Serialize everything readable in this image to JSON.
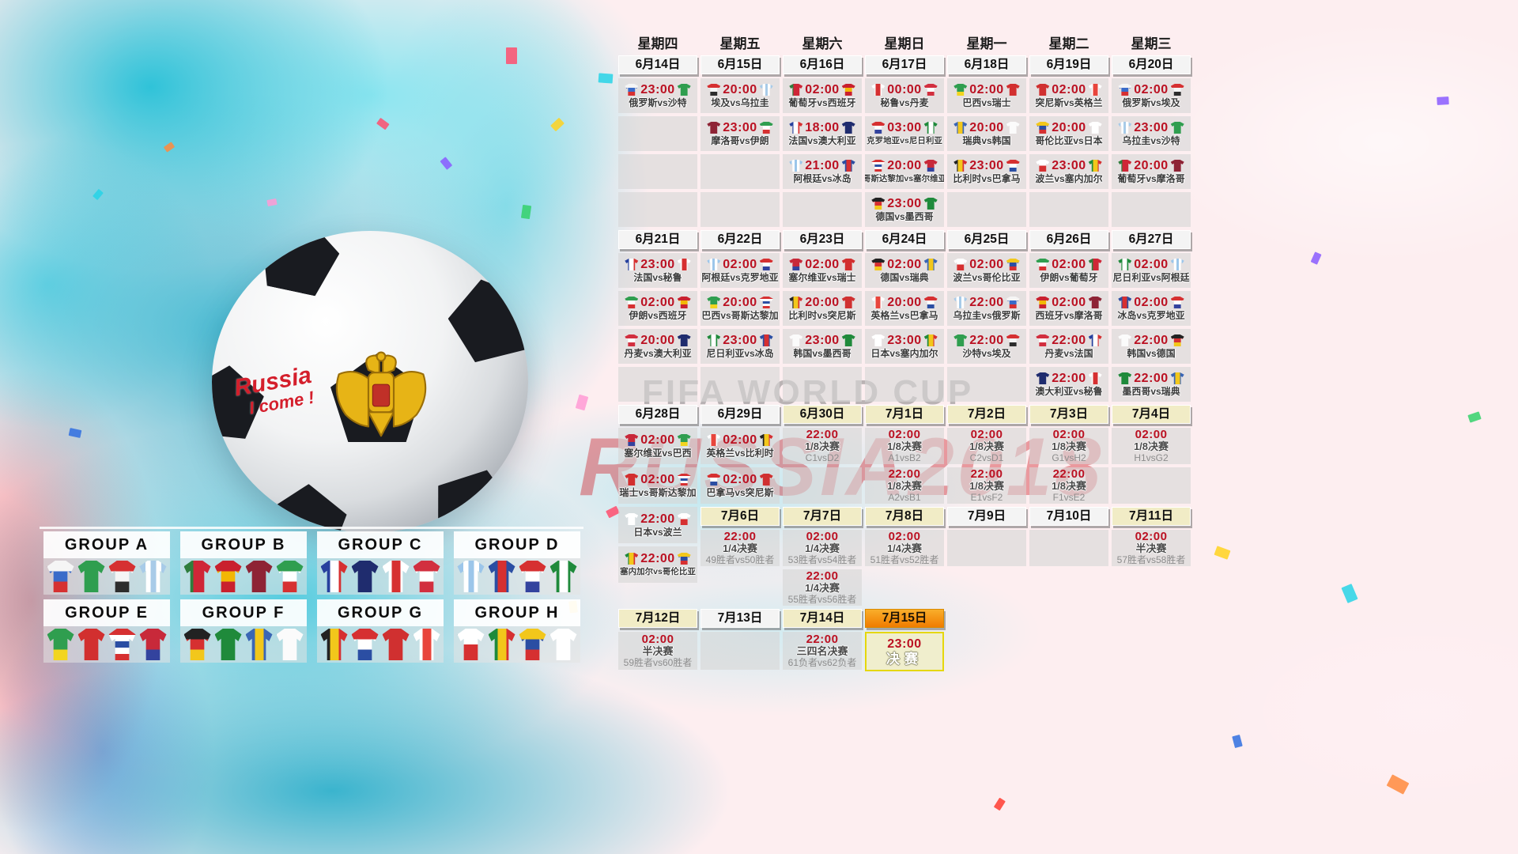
{
  "watermark": {
    "line1": "FIFA WORLD CUP",
    "line2": "RUSSIA2018"
  },
  "ball": {
    "graffiti_line1": "Russia",
    "graffiti_line2": "I come !"
  },
  "weekdays": [
    "星期四",
    "星期五",
    "星期六",
    "星期日",
    "星期一",
    "星期二",
    "星期三"
  ],
  "colors": {
    "time_red": "#bb1122",
    "date_plain": "#f4f4f4",
    "date_cream": "#f1ecc6",
    "date_orange_a": "#f9ae2b",
    "date_orange_b": "#f07c00",
    "cell_bg": "rgba(214,214,214,0.62)",
    "final_bg": "#f0eecd",
    "final_border": "#e5d70c",
    "watermark_red": "rgba(205,25,35,0.40)",
    "watermark_grey": "rgba(120,120,120,0.50)"
  },
  "teams": {
    "俄罗斯": {
      "d": "h",
      "c": [
        "#f5f5f5",
        "#3a6bc9",
        "#d63031"
      ]
    },
    "沙特": {
      "d": "h",
      "c": [
        "#2f9e4f"
      ]
    },
    "埃及": {
      "d": "h",
      "c": [
        "#d63031",
        "#f5f5f5",
        "#2d2d2d"
      ]
    },
    "乌拉圭": {
      "d": "v",
      "c": [
        "#a8cbe8",
        "#ffffff",
        "#a8cbe8",
        "#ffffff",
        "#a8cbe8"
      ]
    },
    "葡萄牙": {
      "d": "v",
      "c": [
        "#2f7d3c",
        "#cf2637",
        "#cf2637"
      ]
    },
    "西班牙": {
      "d": "h",
      "c": [
        "#c9202e",
        "#f2b705",
        "#c9202e"
      ]
    },
    "摩洛哥": {
      "d": "h",
      "c": [
        "#8e2335"
      ]
    },
    "伊朗": {
      "d": "h",
      "c": [
        "#2f9e4f",
        "#ffffff",
        "#d63031"
      ]
    },
    "法国": {
      "d": "v",
      "c": [
        "#27419e",
        "#ffffff",
        "#d63031"
      ]
    },
    "澳大利亚": {
      "d": "h",
      "c": [
        "#1f2c6e"
      ]
    },
    "秘鲁": {
      "d": "v",
      "c": [
        "#ffffff",
        "#d63031",
        "#ffffff"
      ]
    },
    "丹麦": {
      "d": "h",
      "c": [
        "#d22f3f",
        "#ffffff",
        "#d22f3f"
      ]
    },
    "阿根廷": {
      "d": "v",
      "c": [
        "#9cc6ea",
        "#ffffff",
        "#9cc6ea",
        "#ffffff",
        "#9cc6ea"
      ]
    },
    "冰岛": {
      "d": "v",
      "c": [
        "#2b4ea3",
        "#d63031",
        "#2b4ea3"
      ]
    },
    "克罗地亚": {
      "d": "h",
      "c": [
        "#d63031",
        "#ffffff",
        "#33439e"
      ]
    },
    "尼日利亚": {
      "d": "v",
      "c": [
        "#1f8a3b",
        "#ffffff",
        "#1f8a3b"
      ]
    },
    "巴西": {
      "d": "h",
      "c": [
        "#2f9e4f",
        "#2f9e4f",
        "#f2d51f"
      ]
    },
    "瑞士": {
      "d": "h",
      "c": [
        "#d22f2f"
      ]
    },
    "瑞典": {
      "d": "v",
      "c": [
        "#3a66b5",
        "#f2c71b",
        "#3a66b5"
      ]
    },
    "韩国": {
      "d": "h",
      "c": [
        "#fbfbfb"
      ]
    },
    "比利时": {
      "d": "v",
      "c": [
        "#222222",
        "#f2c71b",
        "#d63031"
      ]
    },
    "巴拿马": {
      "d": "h",
      "c": [
        "#d63031",
        "#ffffff",
        "#2b4ea3"
      ]
    },
    "突尼斯": {
      "d": "h",
      "c": [
        "#d03030"
      ]
    },
    "英格兰": {
      "d": "v",
      "c": [
        "#ffffff",
        "#e8453c",
        "#ffffff"
      ]
    },
    "哥伦比亚": {
      "d": "h",
      "c": [
        "#f2c71b",
        "#2b4ea3",
        "#d63031"
      ]
    },
    "日本": {
      "d": "h",
      "c": [
        "#ffffff"
      ]
    },
    "波兰": {
      "d": "h",
      "c": [
        "#ffffff",
        "#d63031"
      ]
    },
    "塞内加尔": {
      "d": "v",
      "c": [
        "#1f8a3b",
        "#f2c71b",
        "#d63031"
      ]
    },
    "德国": {
      "d": "h",
      "c": [
        "#222222",
        "#d63031",
        "#f2c71b"
      ]
    },
    "墨西哥": {
      "d": "h",
      "c": [
        "#1f8a3b"
      ]
    },
    "哥斯达黎加": {
      "d": "h",
      "c": [
        "#d63031",
        "#ffffff",
        "#2b4ea3",
        "#ffffff",
        "#d63031"
      ]
    },
    "塞尔维亚": {
      "d": "h",
      "c": [
        "#c8293a",
        "#c8293a",
        "#33439e"
      ]
    }
  },
  "groups": [
    {
      "name": "GROUP A",
      "teams": [
        "俄罗斯",
        "沙特",
        "埃及",
        "乌拉圭"
      ]
    },
    {
      "name": "GROUP B",
      "teams": [
        "葡萄牙",
        "西班牙",
        "摩洛哥",
        "伊朗"
      ]
    },
    {
      "name": "GROUP C",
      "teams": [
        "法国",
        "澳大利亚",
        "秘鲁",
        "丹麦"
      ]
    },
    {
      "name": "GROUP D",
      "teams": [
        "阿根廷",
        "冰岛",
        "克罗地亚",
        "尼日利亚"
      ]
    },
    {
      "name": "GROUP E",
      "teams": [
        "巴西",
        "瑞士",
        "哥斯达黎加",
        "塞尔维亚"
      ]
    },
    {
      "name": "GROUP F",
      "teams": [
        "德国",
        "墨西哥",
        "瑞典",
        "韩国"
      ]
    },
    {
      "name": "GROUP G",
      "teams": [
        "比利时",
        "巴拿马",
        "突尼斯",
        "英格兰"
      ]
    },
    {
      "name": "GROUP H",
      "teams": [
        "波兰",
        "塞内加尔",
        "哥伦比亚",
        "日本"
      ]
    }
  ],
  "calendar": {
    "sections": [
      {
        "cols": [
          {
            "date": "6月14日",
            "hs": "w",
            "cells": [
              {
                "t": "23:00",
                "h": "俄罗斯",
                "a": "沙特"
              },
              "E",
              "E",
              "E"
            ]
          },
          {
            "date": "6月15日",
            "hs": "w",
            "cells": [
              {
                "t": "20:00",
                "h": "埃及",
                "a": "乌拉圭"
              },
              {
                "t": "23:00",
                "h": "摩洛哥",
                "a": "伊朗"
              },
              "E",
              "E"
            ]
          },
          {
            "date": "6月16日",
            "hs": "w",
            "cells": [
              {
                "t": "02:00",
                "h": "葡萄牙",
                "a": "西班牙"
              },
              {
                "t": "18:00",
                "h": "法国",
                "a": "澳大利亚"
              },
              {
                "t": "21:00",
                "h": "阿根廷",
                "a": "冰岛"
              },
              "E"
            ]
          },
          {
            "date": "6月17日",
            "hs": "w",
            "cells": [
              {
                "t": "00:00",
                "h": "秘鲁",
                "a": "丹麦"
              },
              {
                "t": "03:00",
                "h": "克罗地亚",
                "a": "尼日利亚"
              },
              {
                "t": "20:00",
                "h": "哥斯达黎加",
                "a": "塞尔维亚"
              },
              {
                "t": "23:00",
                "h": "德国",
                "a": "墨西哥"
              }
            ]
          },
          {
            "date": "6月18日",
            "hs": "w",
            "cells": [
              {
                "t": "02:00",
                "h": "巴西",
                "a": "瑞士"
              },
              {
                "t": "20:00",
                "h": "瑞典",
                "a": "韩国"
              },
              {
                "t": "23:00",
                "h": "比利时",
                "a": "巴拿马"
              },
              "E"
            ]
          },
          {
            "date": "6月19日",
            "hs": "w",
            "cells": [
              {
                "t": "02:00",
                "h": "突尼斯",
                "a": "英格兰"
              },
              {
                "t": "20:00",
                "h": "哥伦比亚",
                "a": "日本"
              },
              {
                "t": "23:00",
                "h": "波兰",
                "a": "塞内加尔"
              },
              "E"
            ]
          },
          {
            "date": "6月20日",
            "hs": "w",
            "cells": [
              {
                "t": "02:00",
                "h": "俄罗斯",
                "a": "埃及"
              },
              {
                "t": "23:00",
                "h": "乌拉圭",
                "a": "沙特"
              },
              {
                "t": "20:00",
                "h": "葡萄牙",
                "a": "摩洛哥"
              },
              "E"
            ]
          }
        ]
      },
      {
        "cols": [
          {
            "date": "6月21日",
            "hs": "w",
            "cells": [
              {
                "t": "23:00",
                "h": "法国",
                "a": "秘鲁"
              },
              {
                "t": "02:00",
                "h": "伊朗",
                "a": "西班牙"
              },
              {
                "t": "20:00",
                "h": "丹麦",
                "a": "澳大利亚"
              },
              "E"
            ]
          },
          {
            "date": "6月22日",
            "hs": "w",
            "cells": [
              {
                "t": "02:00",
                "h": "阿根廷",
                "a": "克罗地亚"
              },
              {
                "t": "20:00",
                "h": "巴西",
                "a": "哥斯达黎加"
              },
              {
                "t": "23:00",
                "h": "尼日利亚",
                "a": "冰岛"
              },
              "E"
            ]
          },
          {
            "date": "6月23日",
            "hs": "w",
            "cells": [
              {
                "t": "02:00",
                "h": "塞尔维亚",
                "a": "瑞士"
              },
              {
                "t": "20:00",
                "h": "比利时",
                "a": "突尼斯"
              },
              {
                "t": "23:00",
                "h": "韩国",
                "a": "墨西哥"
              },
              "E"
            ]
          },
          {
            "date": "6月24日",
            "hs": "w",
            "cells": [
              {
                "t": "02:00",
                "h": "德国",
                "a": "瑞典"
              },
              {
                "t": "20:00",
                "h": "英格兰",
                "a": "巴拿马"
              },
              {
                "t": "23:00",
                "h": "日本",
                "a": "塞内加尔"
              },
              "E"
            ]
          },
          {
            "date": "6月25日",
            "hs": "w",
            "cells": [
              {
                "t": "02:00",
                "h": "波兰",
                "a": "哥伦比亚"
              },
              {
                "t": "22:00",
                "h": "乌拉圭",
                "a": "俄罗斯"
              },
              {
                "t": "22:00",
                "h": "沙特",
                "a": "埃及"
              },
              "E"
            ]
          },
          {
            "date": "6月26日",
            "hs": "w",
            "cells": [
              {
                "t": "02:00",
                "h": "伊朗",
                "a": "葡萄牙"
              },
              {
                "t": "02:00",
                "h": "西班牙",
                "a": "摩洛哥"
              },
              {
                "t": "22:00",
                "h": "丹麦",
                "a": "法国"
              },
              {
                "t": "22:00",
                "h": "澳大利亚",
                "a": "秘鲁"
              }
            ]
          },
          {
            "date": "6月27日",
            "hs": "w",
            "cells": [
              {
                "t": "02:00",
                "h": "尼日利亚",
                "a": "阿根廷"
              },
              {
                "t": "02:00",
                "h": "冰岛",
                "a": "克罗地亚"
              },
              {
                "t": "22:00",
                "h": "韩国",
                "a": "德国"
              },
              {
                "t": "22:00",
                "h": "墨西哥",
                "a": "瑞典"
              }
            ]
          }
        ]
      },
      {
        "cols": [
          {
            "date": "6月28日",
            "hs": "w",
            "cells": [
              {
                "t": "02:00",
                "h": "塞尔维亚",
                "a": "巴西"
              },
              {
                "t": "02:00",
                "h": "瑞士",
                "a": "哥斯达黎加"
              }
            ]
          },
          {
            "date": "6月29日",
            "hs": "w",
            "cells": [
              {
                "t": "02:00",
                "h": "英格兰",
                "a": "比利时"
              },
              {
                "t": "02:00",
                "h": "巴拿马",
                "a": "突尼斯"
              }
            ]
          },
          {
            "date": "6月30日",
            "hs": "c",
            "cells": [
              {
                "t": "22:00",
                "s": "1/8决赛",
                "p": "C1vsD2"
              },
              "E"
            ]
          },
          {
            "date": "7月1日",
            "hs": "c",
            "cells": [
              {
                "t": "02:00",
                "s": "1/8决赛",
                "p": "A1vsB2"
              },
              {
                "t": "22:00",
                "s": "1/8决赛",
                "p": "A2vsB1"
              }
            ]
          },
          {
            "date": "7月2日",
            "hs": "c",
            "cells": [
              {
                "t": "02:00",
                "s": "1/8决赛",
                "p": "C2vsD1"
              },
              {
                "t": "22:00",
                "s": "1/8决赛",
                "p": "E1vsF2"
              }
            ]
          },
          {
            "date": "7月3日",
            "hs": "c",
            "cells": [
              {
                "t": "02:00",
                "s": "1/8决赛",
                "p": "G1vsH2"
              },
              {
                "t": "22:00",
                "s": "1/8决赛",
                "p": "F1vsE2"
              }
            ]
          },
          {
            "date": "7月4日",
            "hs": "c",
            "cells": [
              {
                "t": "02:00",
                "s": "1/8决赛",
                "p": "H1vsG2"
              },
              "E"
            ]
          }
        ]
      },
      {
        "cols": [
          {
            "date": null,
            "cells": [
              {
                "t": "22:00",
                "h": "日本",
                "a": "波兰"
              },
              {
                "t": "22:00",
                "h": "塞内加尔",
                "a": "哥伦比亚"
              }
            ]
          },
          {
            "date": "7月6日",
            "hs": "c",
            "cells": [
              {
                "t": "22:00",
                "s": "1/4决赛",
                "p": "49胜者vs50胜者"
              },
              null
            ]
          },
          {
            "date": "7月7日",
            "hs": "c",
            "cells": [
              {
                "t": "02:00",
                "s": "1/4决赛",
                "p": "53胜者vs54胜者"
              },
              {
                "t": "22:00",
                "s": "1/4决赛",
                "p": "55胜者vs56胜者"
              }
            ]
          },
          {
            "date": "7月8日",
            "hs": "c",
            "cells": [
              {
                "t": "02:00",
                "s": "1/4决赛",
                "p": "51胜者vs52胜者"
              },
              null
            ]
          },
          {
            "date": "7月9日",
            "hs": "w",
            "cells": [
              "E",
              null
            ]
          },
          {
            "date": "7月10日",
            "hs": "w",
            "cells": [
              "E",
              null
            ]
          },
          {
            "date": "7月11日",
            "hs": "c",
            "cells": [
              {
                "t": "02:00",
                "s": "半决赛",
                "p": "57胜者vs58胜者"
              },
              null
            ]
          }
        ]
      },
      {
        "cols": [
          {
            "date": "7月12日",
            "hs": "c",
            "cells": [
              {
                "t": "02:00",
                "s": "半决赛",
                "p": "59胜者vs60胜者"
              }
            ]
          },
          {
            "date": "7月13日",
            "hs": "w",
            "cells": [
              "E"
            ]
          },
          {
            "date": "7月14日",
            "hs": "c",
            "cells": [
              {
                "t": "22:00",
                "s": "三四名决赛",
                "p": "61负者vs62负者"
              }
            ]
          },
          {
            "date": "7月15日",
            "hs": "o",
            "cells": [
              {
                "t": "23:00",
                "f": "决赛"
              }
            ]
          }
        ]
      }
    ]
  }
}
